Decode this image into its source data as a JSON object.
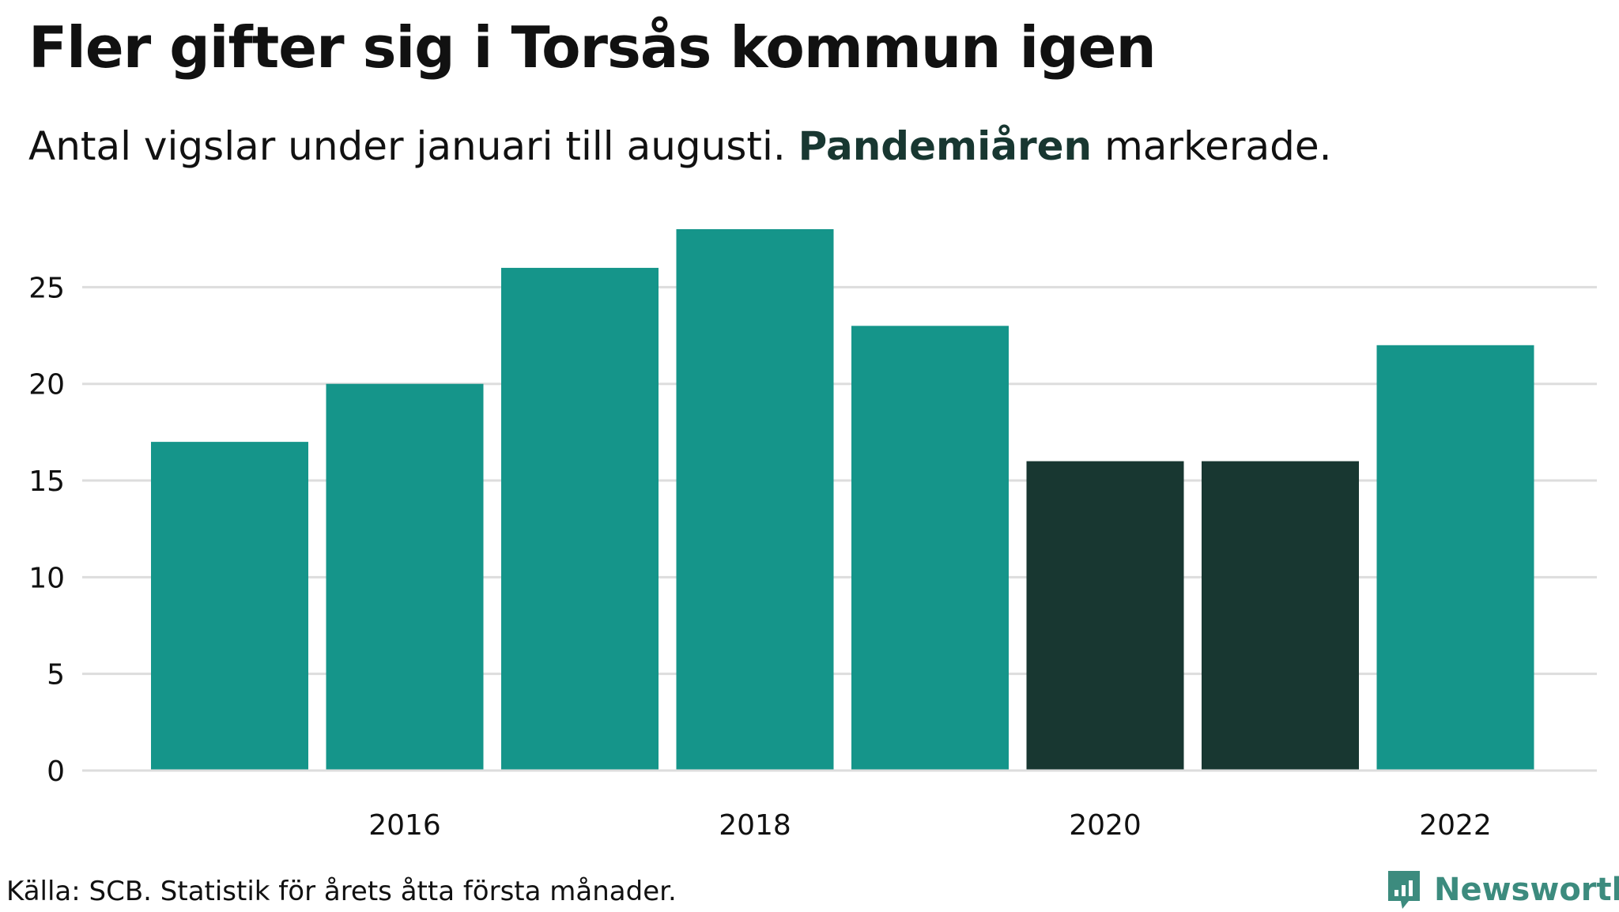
{
  "title": "Fler gifter sig i Torsås kommun igen",
  "subtitle": {
    "before": "Antal vigslar under januari till augusti.",
    "highlight": "Pandemiåren",
    "after": "markerade."
  },
  "source": "Källa: SCB. Statistik för årets åtta första månader.",
  "brand": {
    "name": "Newsworthy",
    "icon": "bar-chart-speech-bubble-icon"
  },
  "colors": {
    "normal": "#15958a",
    "pandemic": "#183731",
    "grid": "#dddddd",
    "text": "#111111",
    "brand": "#3c8b7e"
  },
  "chart_data": {
    "type": "bar",
    "categories": [
      "2015",
      "2016",
      "2017",
      "2018",
      "2019",
      "2020",
      "2021",
      "2022"
    ],
    "values": [
      17,
      20,
      26,
      28,
      23,
      16,
      16,
      22
    ],
    "highlighted": [
      "2020",
      "2021"
    ],
    "x_tick_labels": [
      "2016",
      "2018",
      "2020",
      "2022"
    ],
    "y_ticks": [
      0,
      5,
      10,
      15,
      20,
      25
    ],
    "ylim": [
      0,
      28
    ],
    "grid": true,
    "xlabel": "",
    "ylabel": ""
  }
}
